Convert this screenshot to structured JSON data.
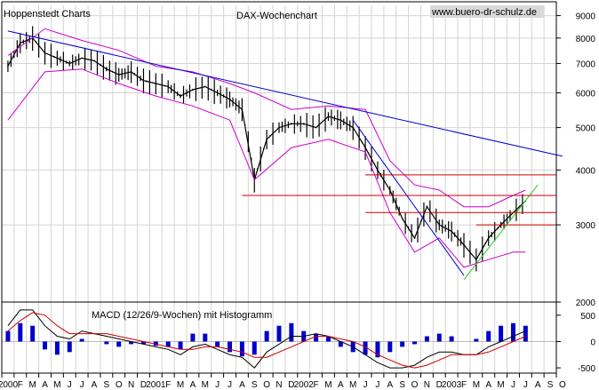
{
  "chart_data": [
    {
      "type": "line",
      "title": "DAX-Wochenchart",
      "source_label": "Hoppenstedt Charts",
      "watermark": "www.buero-dr-schulz.de",
      "y_scale": "log",
      "ylim": [
        2000,
        9500
      ],
      "y_ticks": [
        "2000",
        "3000",
        "4000",
        "5000",
        "6000",
        "7000",
        "8000",
        "9000"
      ],
      "x_tick_labels": [
        "2000",
        "F",
        "M",
        "A",
        "M",
        "J",
        "J",
        "A",
        "S",
        "O",
        "N",
        "D",
        "2001",
        "F",
        "M",
        "A",
        "M",
        "J",
        "J",
        "A",
        "S",
        "O",
        "N",
        "D",
        "2002",
        "F",
        "M",
        "A",
        "M",
        "J",
        "J",
        "A",
        "S",
        "O",
        "N",
        "D",
        "2003",
        "F",
        "M",
        "A",
        "M",
        "J",
        "J",
        "A",
        "S",
        "O"
      ],
      "x_start": "2000-01",
      "grid": true,
      "colors": {
        "price": "#000000",
        "bollinger": "#cc00cc",
        "downtrend": "#0000cc",
        "support": "#cc0000",
        "uptrend": "#22cc22"
      },
      "series": [
        {
          "role": "price",
          "x": [
            "2000-01",
            "2000-02",
            "2000-03",
            "2000-04",
            "2000-05",
            "2000-06",
            "2000-07",
            "2000-08",
            "2000-09",
            "2000-10",
            "2000-11",
            "2000-12",
            "2001-01",
            "2001-02",
            "2001-03",
            "2001-04",
            "2001-05",
            "2001-06",
            "2001-07",
            "2001-08",
            "2001-09",
            "2001-10",
            "2001-11",
            "2001-12",
            "2002-01",
            "2002-02",
            "2002-03",
            "2002-04",
            "2002-05",
            "2002-06",
            "2002-07",
            "2002-08",
            "2002-09",
            "2002-10",
            "2002-11",
            "2002-12",
            "2003-01",
            "2003-02",
            "2003-03",
            "2003-04",
            "2003-05",
            "2003-06",
            "2003-07"
          ],
          "values": [
            6900,
            7800,
            8000,
            7400,
            7200,
            7000,
            7200,
            7100,
            6800,
            6600,
            6700,
            6400,
            6300,
            6200,
            5900,
            6100,
            6200,
            6000,
            5800,
            5500,
            3800,
            4700,
            5000,
            5100,
            5100,
            5000,
            5300,
            5200,
            5000,
            4500,
            4000,
            3600,
            3100,
            2800,
            3300,
            3000,
            2900,
            2700,
            2500,
            2800,
            3000,
            3200,
            3400
          ]
        },
        {
          "role": "bollinger-upper",
          "x": [
            "2000-01",
            "2000-04",
            "2000-07",
            "2000-10",
            "2001-01",
            "2001-04",
            "2001-07",
            "2001-09",
            "2001-12",
            "2002-03",
            "2002-06",
            "2002-08",
            "2002-10",
            "2002-12",
            "2003-02",
            "2003-04",
            "2003-06",
            "2003-07"
          ],
          "values": [
            7300,
            8400,
            7900,
            7500,
            6900,
            6700,
            6300,
            6000,
            5500,
            5600,
            5500,
            4200,
            3700,
            3600,
            3300,
            3300,
            3500,
            3600
          ]
        },
        {
          "role": "bollinger-lower",
          "x": [
            "2000-01",
            "2000-04",
            "2000-07",
            "2000-10",
            "2001-01",
            "2001-04",
            "2001-07",
            "2001-09",
            "2001-12",
            "2002-03",
            "2002-06",
            "2002-08",
            "2002-10",
            "2002-12",
            "2003-02",
            "2003-04",
            "2003-06",
            "2003-07"
          ],
          "values": [
            5200,
            6700,
            6800,
            6300,
            5900,
            5600,
            5200,
            3800,
            4500,
            4700,
            4400,
            3200,
            2600,
            2800,
            2400,
            2500,
            2600,
            2600
          ]
        },
        {
          "role": "downtrend-line",
          "x": [
            "2000-01",
            "2003-10"
          ],
          "values": [
            8300,
            4300
          ]
        },
        {
          "role": "steep-downtrend",
          "x": [
            "2002-05",
            "2003-02"
          ],
          "values": [
            5200,
            2300
          ]
        },
        {
          "role": "uptrend-line",
          "x": [
            "2003-02",
            "2003-08"
          ],
          "values": [
            2250,
            3700
          ]
        }
      ],
      "horizontal_lines": [
        {
          "value": 3900,
          "x_from": "2002-06",
          "x_to": "2003-10"
        },
        {
          "value": 3500,
          "x_from": "2001-08",
          "x_to": "2003-10"
        },
        {
          "value": 3200,
          "x_from": "2002-06",
          "x_to": "2003-10"
        },
        {
          "value": 3000,
          "x_from": "2003-03",
          "x_to": "2003-10"
        }
      ]
    },
    {
      "type": "bar",
      "title": "MACD (12/26/9-Wochen) mit Histogramm",
      "ylim": [
        -600,
        700
      ],
      "y_ticks": [
        "-500",
        "0",
        "500"
      ],
      "colors": {
        "histogram": "#0000cc",
        "macd": "#000000",
        "signal": "#cc0000"
      },
      "x": [
        "2000-01",
        "2000-02",
        "2000-03",
        "2000-04",
        "2000-05",
        "2000-06",
        "2000-07",
        "2000-08",
        "2000-09",
        "2000-10",
        "2000-11",
        "2000-12",
        "2001-01",
        "2001-02",
        "2001-03",
        "2001-04",
        "2001-05",
        "2001-06",
        "2001-07",
        "2001-08",
        "2001-09",
        "2001-10",
        "2001-11",
        "2001-12",
        "2002-01",
        "2002-02",
        "2002-03",
        "2002-04",
        "2002-05",
        "2002-06",
        "2002-07",
        "2002-08",
        "2002-09",
        "2002-10",
        "2002-11",
        "2002-12",
        "2003-01",
        "2003-02",
        "2003-03",
        "2003-04",
        "2003-05",
        "2003-06",
        "2003-07"
      ],
      "series": [
        {
          "role": "histogram",
          "values": [
            200,
            350,
            300,
            -150,
            -250,
            -200,
            50,
            0,
            -50,
            -100,
            -50,
            -50,
            -80,
            -100,
            -150,
            150,
            150,
            -100,
            -200,
            -280,
            -250,
            200,
            300,
            350,
            200,
            150,
            100,
            -100,
            -200,
            -250,
            -300,
            -200,
            -100,
            -50,
            100,
            150,
            100,
            0,
            50,
            200,
            300,
            350,
            300
          ]
        },
        {
          "role": "macd",
          "values": [
            300,
            600,
            600,
            300,
            100,
            50,
            200,
            150,
            100,
            50,
            0,
            -50,
            -100,
            -150,
            -250,
            -100,
            -50,
            -150,
            -250,
            -300,
            -500,
            -200,
            -50,
            100,
            100,
            150,
            100,
            0,
            -100,
            -250,
            -400,
            -500,
            -500,
            -450,
            -300,
            -200,
            -200,
            -250,
            -250,
            -100,
            0,
            100,
            200
          ]
        },
        {
          "role": "signal",
          "values": [
            200,
            400,
            550,
            500,
            300,
            150,
            150,
            150,
            150,
            100,
            50,
            0,
            -50,
            -100,
            -150,
            -150,
            -100,
            -100,
            -150,
            -200,
            -300,
            -300,
            -200,
            -100,
            0,
            100,
            100,
            50,
            0,
            -100,
            -250,
            -350,
            -450,
            -500,
            -450,
            -350,
            -250,
            -250,
            -250,
            -200,
            -100,
            0,
            100
          ]
        }
      ]
    }
  ]
}
